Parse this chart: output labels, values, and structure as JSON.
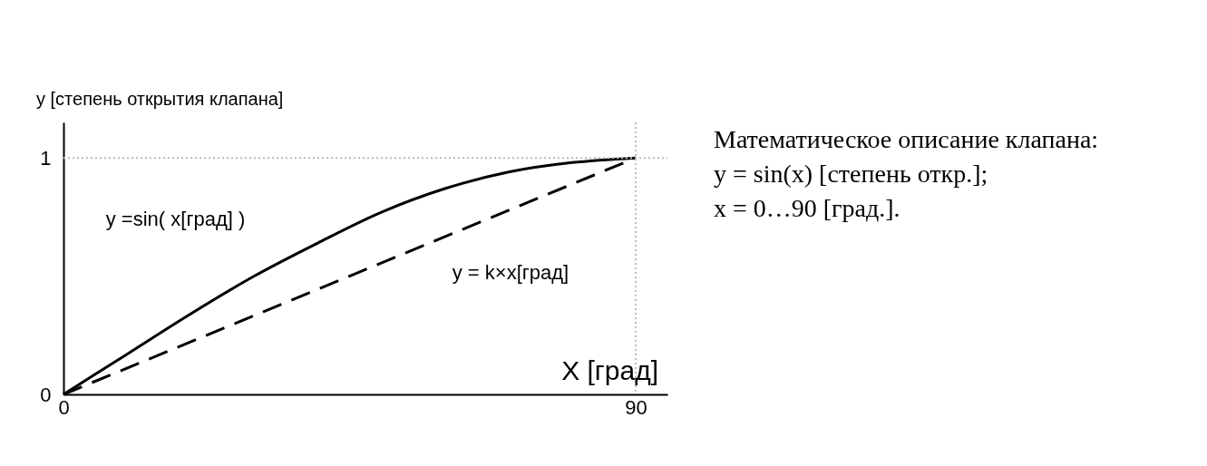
{
  "chart_data": {
    "type": "line",
    "xlabel": "X [град]",
    "ylabel": "y [степень открытия клапана]",
    "xlim": [
      0,
      95
    ],
    "ylim": [
      0,
      1.15
    ],
    "xticks": [
      0,
      90
    ],
    "yticks": [
      0,
      1
    ],
    "grid": false,
    "legend": false,
    "marker": "none",
    "series": [
      {
        "name": "y =sin( x[град] )",
        "color": "#000000",
        "line_style": "solid",
        "x": [
          0,
          10,
          20,
          30,
          40,
          50,
          60,
          70,
          80,
          90
        ],
        "values": [
          0,
          0.17,
          0.34,
          0.5,
          0.64,
          0.77,
          0.87,
          0.94,
          0.98,
          1
        ]
      },
      {
        "name": "y = k×x[град]",
        "color": "#000000",
        "line_style": "dashed",
        "x": [
          0,
          90
        ],
        "values": [
          0,
          1
        ]
      }
    ],
    "ref_lines": [
      {
        "axis": "y",
        "value": 1,
        "label": null,
        "color": "#bbbbbb",
        "line_style": "dotted"
      },
      {
        "axis": "x",
        "value": 90,
        "label": null,
        "color": "#bbbbbb",
        "line_style": "dotted"
      }
    ],
    "annotations": [
      "Математическое описание клапана:",
      "y = sin(x) [степень откр.];",
      "x = 0…90 [град.]."
    ]
  }
}
